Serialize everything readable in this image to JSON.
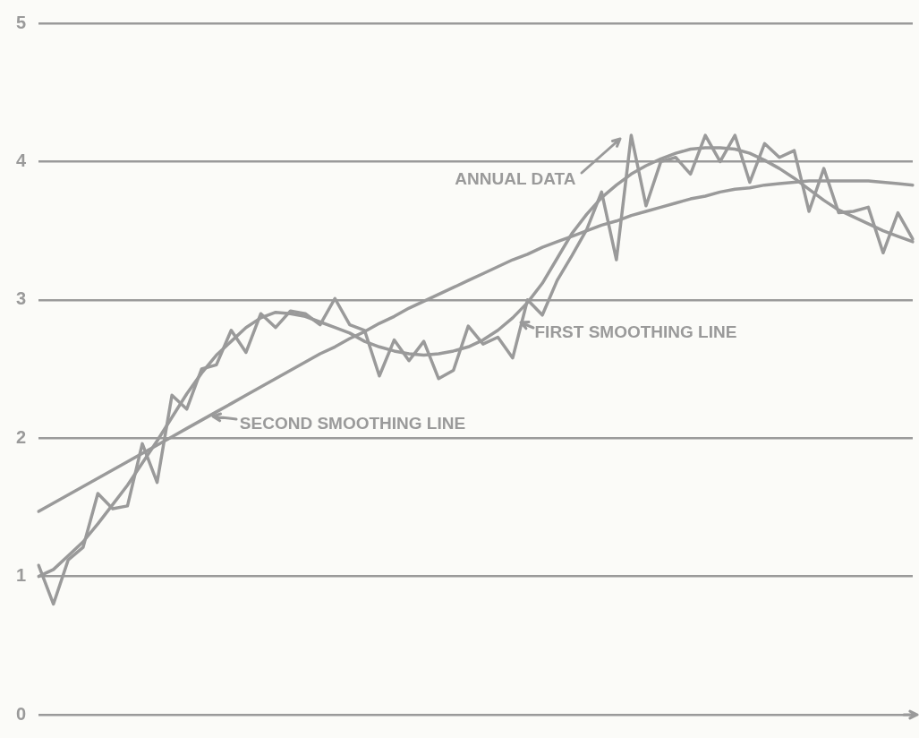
{
  "chart_data": {
    "type": "line",
    "categories": [
      null,
      null,
      null,
      null,
      null,
      null,
      null,
      null,
      null,
      null,
      null,
      null,
      null,
      null,
      null,
      null,
      null,
      null,
      null,
      null,
      null,
      null,
      null,
      null,
      null,
      null,
      null,
      null,
      null,
      null,
      null,
      null,
      null,
      null,
      null,
      null,
      null,
      null,
      null,
      null,
      null,
      null,
      null,
      null,
      null,
      null,
      null,
      null,
      null,
      null,
      null,
      null,
      null,
      null,
      null,
      null,
      null,
      null,
      null,
      null
    ],
    "series": [
      {
        "name": "ANNUAL DATA",
        "color": "#9a9a9a",
        "values": [
          1.08,
          0.8,
          1.12,
          1.21,
          1.6,
          1.49,
          1.51,
          1.96,
          1.68,
          2.31,
          2.21,
          2.5,
          2.53,
          2.78,
          2.62,
          2.9,
          2.8,
          2.92,
          2.9,
          2.82,
          3.01,
          2.82,
          2.78,
          2.45,
          2.71,
          2.56,
          2.7,
          2.43,
          2.49,
          2.81,
          2.68,
          2.73,
          2.58,
          3.0,
          2.89,
          3.14,
          3.32,
          3.51,
          3.78,
          3.29,
          4.19,
          3.68,
          4.0,
          4.03,
          3.91,
          4.19,
          4.0,
          4.19,
          3.85,
          4.13,
          4.03,
          4.08,
          3.64,
          3.95,
          3.63,
          3.64,
          3.67,
          3.34,
          3.63,
          3.44
        ]
      },
      {
        "name": "FIRST SMOOTHING LINE",
        "color": "#9a9a9a",
        "values": [
          1.0,
          1.05,
          1.15,
          1.25,
          1.38,
          1.52,
          1.66,
          1.82,
          1.98,
          2.15,
          2.32,
          2.47,
          2.6,
          2.7,
          2.8,
          2.87,
          2.91,
          2.9,
          2.88,
          2.84,
          2.8,
          2.76,
          2.7,
          2.66,
          2.63,
          2.61,
          2.6,
          2.61,
          2.63,
          2.66,
          2.71,
          2.78,
          2.87,
          2.98,
          3.12,
          3.3,
          3.48,
          3.62,
          3.74,
          3.83,
          3.91,
          3.97,
          4.02,
          4.06,
          4.09,
          4.1,
          4.1,
          4.09,
          4.06,
          4.01,
          3.95,
          3.88,
          3.8,
          3.72,
          3.65,
          3.6,
          3.55,
          3.5,
          3.46,
          3.42
        ]
      },
      {
        "name": "SECOND SMOOTHING LINE",
        "color": "#9a9a9a",
        "values": [
          1.47,
          1.53,
          1.59,
          1.65,
          1.71,
          1.77,
          1.83,
          1.89,
          1.95,
          2.01,
          2.07,
          2.13,
          2.19,
          2.25,
          2.31,
          2.37,
          2.43,
          2.49,
          2.55,
          2.61,
          2.66,
          2.72,
          2.77,
          2.83,
          2.88,
          2.94,
          2.99,
          3.04,
          3.09,
          3.14,
          3.19,
          3.24,
          3.29,
          3.33,
          3.38,
          3.42,
          3.46,
          3.5,
          3.54,
          3.57,
          3.61,
          3.64,
          3.67,
          3.7,
          3.73,
          3.75,
          3.78,
          3.8,
          3.81,
          3.83,
          3.84,
          3.85,
          3.86,
          3.86,
          3.86,
          3.86,
          3.86,
          3.85,
          3.84,
          3.83
        ]
      }
    ],
    "ylim": [
      0,
      5
    ],
    "yticks": [
      0,
      1,
      2,
      3,
      4,
      5
    ],
    "grid": "y",
    "legend": "center",
    "tick_labels": "y",
    "marker": "none",
    "line_style": "solid"
  }
}
